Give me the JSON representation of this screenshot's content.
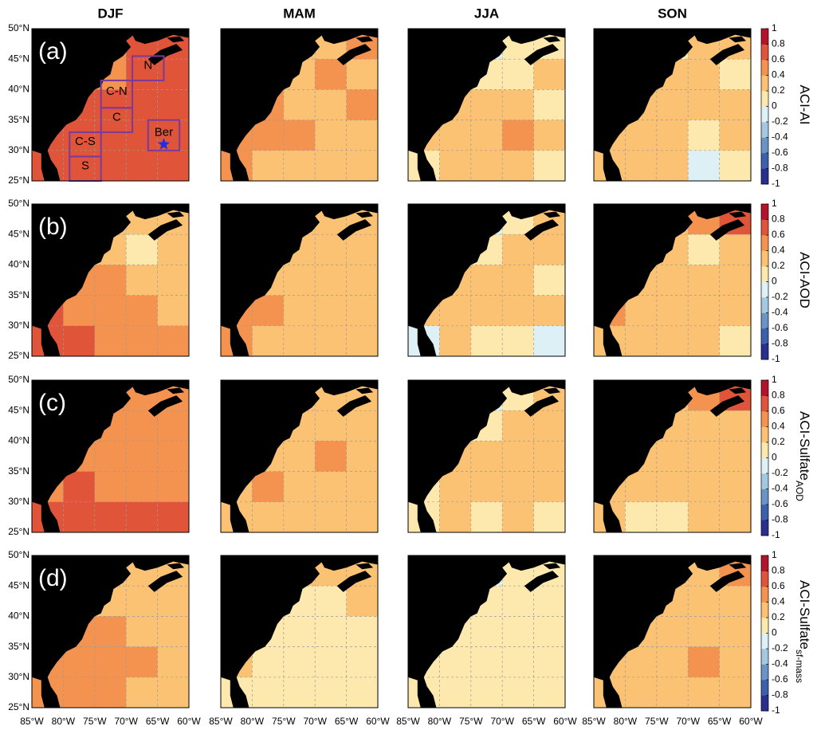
{
  "chart_data": {
    "type": "heatmap",
    "columns": [
      "DJF",
      "MAM",
      "JJA",
      "SON"
    ],
    "rows": [
      {
        "panel": "(a)",
        "label": "ACI-AI"
      },
      {
        "panel": "(b)",
        "label": "ACI-AOD"
      },
      {
        "panel": "(c)",
        "label": "ACI-Sulfate",
        "subscript": "AOD"
      },
      {
        "panel": "(d)",
        "label": "ACI-Sulfate",
        "subscript": "sf-mass"
      }
    ],
    "lonlim": [
      -85,
      -60
    ],
    "latlim": [
      25,
      50
    ],
    "lonticks": [
      {
        "value": -85,
        "label": "85°W"
      },
      {
        "value": -80,
        "label": "80°W"
      },
      {
        "value": -75,
        "label": "75°W"
      },
      {
        "value": -70,
        "label": "70°W"
      },
      {
        "value": -65,
        "label": "65°W"
      },
      {
        "value": -60,
        "label": "60°W"
      }
    ],
    "latticks": [
      {
        "value": 50,
        "label": "50°N"
      },
      {
        "value": 45,
        "label": "45°N"
      },
      {
        "value": 40,
        "label": "40°N"
      },
      {
        "value": 35,
        "label": "35°N"
      },
      {
        "value": 30,
        "label": "30°N"
      },
      {
        "value": 25,
        "label": "25°N"
      }
    ],
    "grid": true,
    "clim": [
      -1,
      1
    ],
    "cticks": [
      1,
      0.8,
      0.6,
      0.4,
      0.2,
      0,
      -0.2,
      -0.4,
      -0.6,
      -0.8,
      -1
    ],
    "colors": [
      "#2a2f8f",
      "#3c5fae",
      "#6a93c6",
      "#a3c8e0",
      "#ddf0f6",
      "#fde9ad",
      "#fcc274",
      "#f4934f",
      "#e0553a",
      "#b3132b"
    ],
    "regions": [
      {
        "name": "N",
        "lonlim": [
          -69,
          -64
        ],
        "latlim": [
          41.5,
          45.5
        ]
      },
      {
        "name": "C-N",
        "lonlim": [
          -74,
          -69
        ],
        "latlim": [
          37,
          41.5
        ]
      },
      {
        "name": "C",
        "lonlim": [
          -74,
          -69
        ],
        "latlim": [
          33,
          37
        ]
      },
      {
        "name": "C-S",
        "lonlim": [
          -79,
          -74
        ],
        "latlim": [
          29,
          33
        ]
      },
      {
        "name": "S",
        "lonlim": [
          -79,
          -74
        ],
        "latlim": [
          25,
          29
        ]
      },
      {
        "name": "Ber",
        "lonlim": [
          -66.5,
          -61.5
        ],
        "latlim": [
          30,
          35
        ]
      }
    ],
    "marker": {
      "lon": -64,
      "lat": 31,
      "color": "#1f2fe0"
    },
    "panels": [
      [
        [
          [
            0.5,
            0.5,
            0.5,
            0.7,
            0.6
          ],
          [
            0.5,
            0.6,
            0.5,
            0.7,
            0.7
          ],
          [
            0.6,
            0.6,
            0.7,
            0.6,
            0.7
          ],
          [
            0.7,
            0.7,
            0.7,
            0.6,
            0.6
          ],
          [
            0.7,
            0.7,
            0.7,
            0.7,
            0.6
          ]
        ],
        [
          [
            0.3,
            0.3,
            0.3,
            0.3,
            0.5
          ],
          [
            0.3,
            0.3,
            0.3,
            0.4,
            0.3
          ],
          [
            0.3,
            0.4,
            0.3,
            0.3,
            0.4
          ],
          [
            0.4,
            0.4,
            0.5,
            0.3,
            0.3
          ],
          [
            0.4,
            0.3,
            0.3,
            0.3,
            0.3
          ]
        ],
        [
          [
            0.1,
            0.1,
            -0.1,
            0.1,
            0.1
          ],
          [
            0.1,
            -0.1,
            0.1,
            0.1,
            0.3
          ],
          [
            0.1,
            0.3,
            0.3,
            0.3,
            0.1
          ],
          [
            0.3,
            0.3,
            0.3,
            0.5,
            0.3
          ],
          [
            0.1,
            0.3,
            0.3,
            0.3,
            0.1
          ]
        ],
        [
          [
            0.3,
            0.3,
            0.1,
            0.3,
            0.3
          ],
          [
            0.3,
            0.3,
            0.3,
            0.3,
            0.1
          ],
          [
            0.3,
            0.3,
            0.3,
            0.3,
            0.3
          ],
          [
            0.3,
            0.3,
            0.3,
            0.1,
            0.3
          ],
          [
            0.3,
            0.3,
            0.3,
            -0.1,
            0.1
          ]
        ]
      ],
      [
        [
          [
            0.5,
            0.5,
            0.3,
            0.3,
            0.3
          ],
          [
            0.5,
            0.5,
            0.3,
            0.1,
            0.3
          ],
          [
            0.5,
            0.5,
            0.5,
            0.3,
            0.3
          ],
          [
            0.7,
            0.5,
            0.5,
            0.5,
            0.3
          ],
          [
            0.7,
            0.7,
            0.5,
            0.5,
            0.5
          ]
        ],
        [
          [
            0.5,
            0.3,
            0.3,
            0.3,
            0.3
          ],
          [
            0.3,
            0.3,
            0.3,
            0.3,
            0.3
          ],
          [
            0.5,
            0.3,
            0.3,
            0.3,
            0.3
          ],
          [
            0.5,
            0.5,
            0.3,
            0.3,
            0.3
          ],
          [
            0.5,
            0.3,
            0.3,
            0.3,
            0.3
          ]
        ],
        [
          [
            0.1,
            0.1,
            -0.1,
            0.1,
            0.3
          ],
          [
            0.1,
            -0.1,
            0.1,
            0.3,
            0.3
          ],
          [
            0.3,
            0.3,
            0.3,
            0.3,
            0.1
          ],
          [
            0.3,
            0.3,
            0.3,
            0.3,
            0.3
          ],
          [
            -0.1,
            0.3,
            0.1,
            0.1,
            -0.1
          ]
        ],
        [
          [
            0.3,
            0.3,
            0.3,
            0.5,
            0.7
          ],
          [
            0.3,
            0.3,
            0.3,
            0.1,
            0.3
          ],
          [
            0.3,
            0.3,
            0.3,
            0.3,
            0.3
          ],
          [
            0.5,
            0.3,
            0.3,
            0.3,
            0.3
          ],
          [
            0.3,
            0.3,
            0.3,
            0.3,
            0.1
          ]
        ]
      ],
      [
        [
          [
            0.5,
            0.5,
            0.5,
            0.5,
            0.5
          ],
          [
            0.5,
            0.5,
            0.5,
            0.5,
            0.5
          ],
          [
            0.5,
            0.5,
            0.5,
            0.5,
            0.5
          ],
          [
            0.5,
            0.7,
            0.5,
            0.5,
            0.5
          ],
          [
            0.7,
            0.7,
            0.7,
            0.7,
            0.7
          ]
        ],
        [
          [
            0.3,
            0.3,
            0.3,
            0.3,
            0.3
          ],
          [
            0.3,
            0.3,
            0.3,
            0.3,
            0.3
          ],
          [
            0.3,
            0.3,
            0.3,
            0.5,
            0.3
          ],
          [
            0.3,
            0.5,
            0.3,
            0.3,
            0.3
          ],
          [
            0.3,
            0.3,
            0.3,
            0.3,
            0.3
          ]
        ],
        [
          [
            0.1,
            0.1,
            -0.1,
            0.1,
            0.3
          ],
          [
            0.1,
            0.3,
            0.1,
            0.3,
            0.3
          ],
          [
            0.3,
            0.3,
            0.3,
            0.3,
            0.3
          ],
          [
            0.1,
            0.3,
            0.3,
            0.3,
            0.3
          ],
          [
            0.1,
            0.3,
            0.1,
            0.3,
            0.1
          ]
        ],
        [
          [
            0.3,
            0.3,
            0.3,
            0.5,
            0.7
          ],
          [
            0.3,
            0.3,
            0.3,
            0.3,
            0.3
          ],
          [
            0.3,
            0.3,
            0.3,
            0.3,
            0.3
          ],
          [
            0.3,
            0.3,
            0.3,
            0.3,
            0.3
          ],
          [
            0.3,
            0.1,
            0.1,
            0.3,
            0.3
          ]
        ]
      ],
      [
        [
          [
            0.3,
            0.3,
            0.3,
            0.3,
            0.3
          ],
          [
            0.3,
            0.3,
            0.3,
            0.3,
            0.3
          ],
          [
            0.5,
            0.5,
            0.5,
            0.3,
            0.3
          ],
          [
            0.5,
            0.5,
            0.5,
            0.5,
            0.3
          ],
          [
            0.5,
            0.5,
            0.5,
            0.3,
            0.3
          ]
        ],
        [
          [
            0.1,
            0.1,
            0.3,
            0.3,
            0.3
          ],
          [
            0.3,
            0.1,
            0.1,
            0.1,
            0.3
          ],
          [
            0.3,
            0.1,
            0.1,
            0.1,
            0.1
          ],
          [
            0.3,
            0.1,
            0.1,
            0.1,
            0.1
          ],
          [
            0.1,
            0.1,
            0.1,
            0.1,
            0.1
          ]
        ],
        [
          [
            0.1,
            0.1,
            -0.1,
            0.1,
            0.1
          ],
          [
            0.1,
            -0.1,
            0.1,
            0.1,
            0.1
          ],
          [
            0.1,
            0.1,
            0.1,
            0.1,
            0.1
          ],
          [
            0.1,
            0.1,
            0.1,
            0.1,
            0.1
          ],
          [
            0.1,
            0.1,
            0.1,
            0.1,
            0.1
          ]
        ],
        [
          [
            0.3,
            0.3,
            0.3,
            0.3,
            0.5
          ],
          [
            0.3,
            0.3,
            0.3,
            0.3,
            0.3
          ],
          [
            0.3,
            0.3,
            0.3,
            0.3,
            0.3
          ],
          [
            0.3,
            0.3,
            0.3,
            0.5,
            0.3
          ],
          [
            0.3,
            0.3,
            0.3,
            0.3,
            0.3
          ]
        ]
      ]
    ]
  }
}
